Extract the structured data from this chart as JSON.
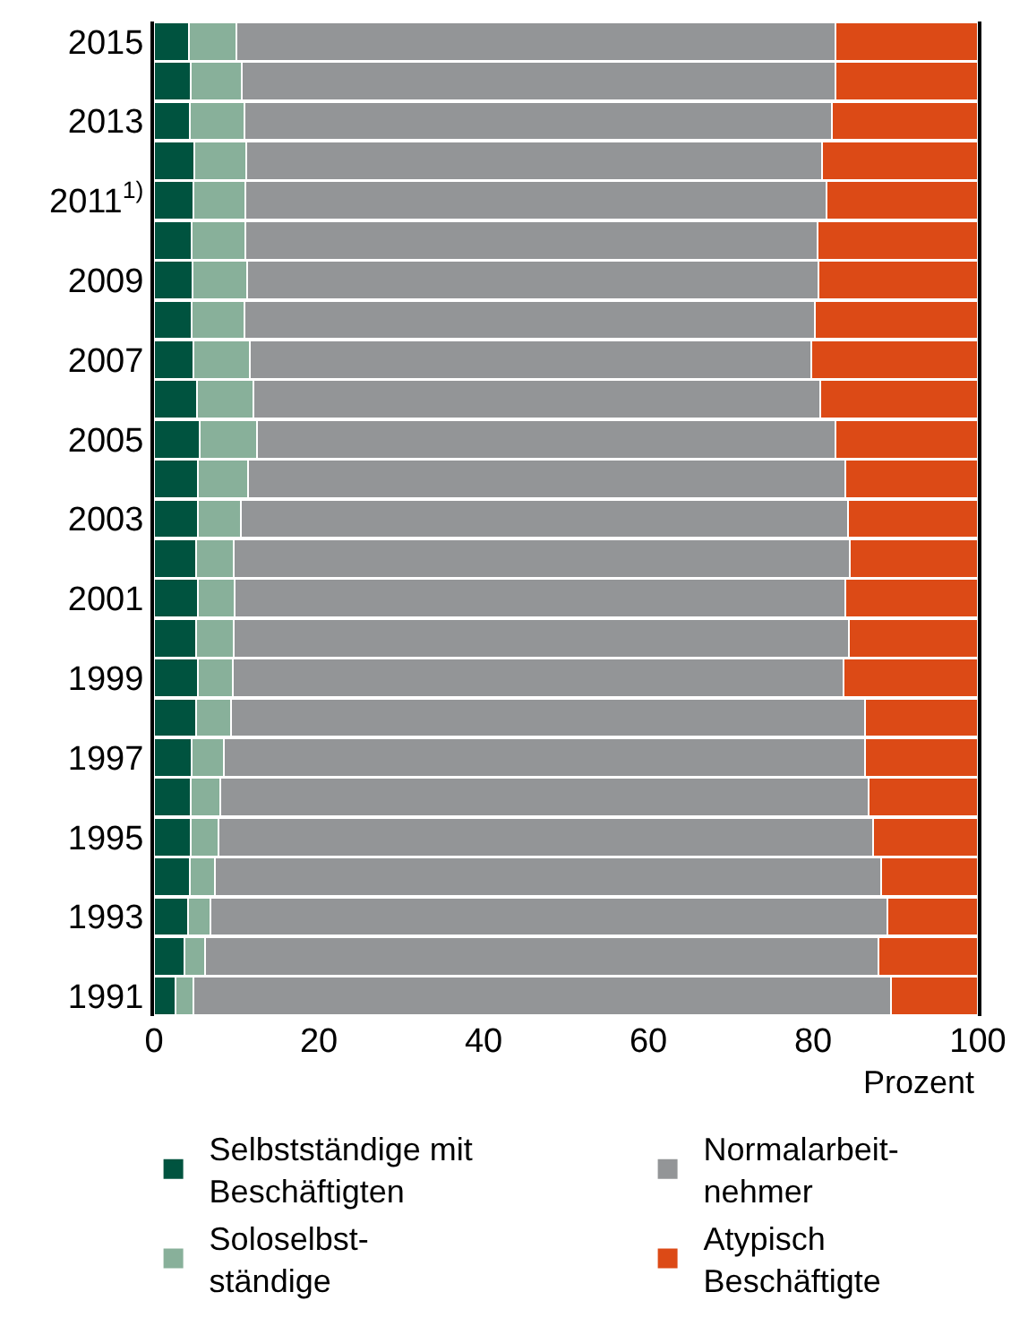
{
  "chart_data": {
    "type": "bar",
    "orientation": "horizontal",
    "stacked": true,
    "xlabel": "Prozent",
    "categories": [
      "2015",
      null,
      "2013",
      null,
      "2011$^{1)}$",
      null,
      "2009",
      null,
      "2007",
      null,
      "2005",
      null,
      "2003",
      null,
      "2001",
      null,
      "1999",
      null,
      "1997",
      null,
      "1995",
      null,
      "1993",
      null,
      "1991"
    ],
    "series": [
      {
        "name": "Selbstständige mit\nBeschäftigten",
        "color": "#00533f",
        "values": [
          4.2,
          4.5,
          4.3,
          4.9,
          4.8,
          4.6,
          4.7,
          4.6,
          4.8,
          5.2,
          5.5,
          5.3,
          5.3,
          5.1,
          5.3,
          5.1,
          5.3,
          5.1,
          4.6,
          4.5,
          4.5,
          4.3,
          4.1,
          3.7,
          2.6
        ]
      },
      {
        "name": "Soloselbst-\nständige",
        "color": "#88b09a",
        "values": [
          5.8,
          6.2,
          6.7,
          6.3,
          6.3,
          6.5,
          6.6,
          6.4,
          6.8,
          6.9,
          7.0,
          6.1,
          5.2,
          4.6,
          4.5,
          4.6,
          4.3,
          4.3,
          3.9,
          3.5,
          3.3,
          3.1,
          2.8,
          2.5,
          2.2
        ]
      },
      {
        "name": "Normalarbeit-\nnehmer",
        "color": "#939597",
        "values": [
          72.7,
          72.0,
          71.3,
          69.9,
          70.5,
          69.4,
          69.4,
          69.2,
          68.2,
          68.8,
          70.2,
          72.5,
          73.7,
          74.8,
          74.1,
          74.6,
          74.1,
          76.9,
          77.8,
          78.7,
          79.5,
          80.9,
          82.1,
          81.7,
          84.7
        ]
      },
      {
        "name": "Atypisch\nBeschäftigte",
        "color": "#dc4a16",
        "values": [
          17.3,
          17.3,
          17.7,
          18.9,
          18.4,
          19.5,
          19.3,
          19.8,
          20.2,
          19.1,
          17.3,
          16.1,
          15.8,
          15.5,
          16.1,
          15.7,
          16.3,
          13.7,
          13.7,
          13.3,
          12.7,
          11.7,
          11.0,
          12.1,
          10.5
        ]
      }
    ],
    "xlim": [
      0,
      100
    ],
    "xticks": [
      0,
      20,
      40,
      60,
      80,
      100
    ],
    "legend": "bottom"
  }
}
